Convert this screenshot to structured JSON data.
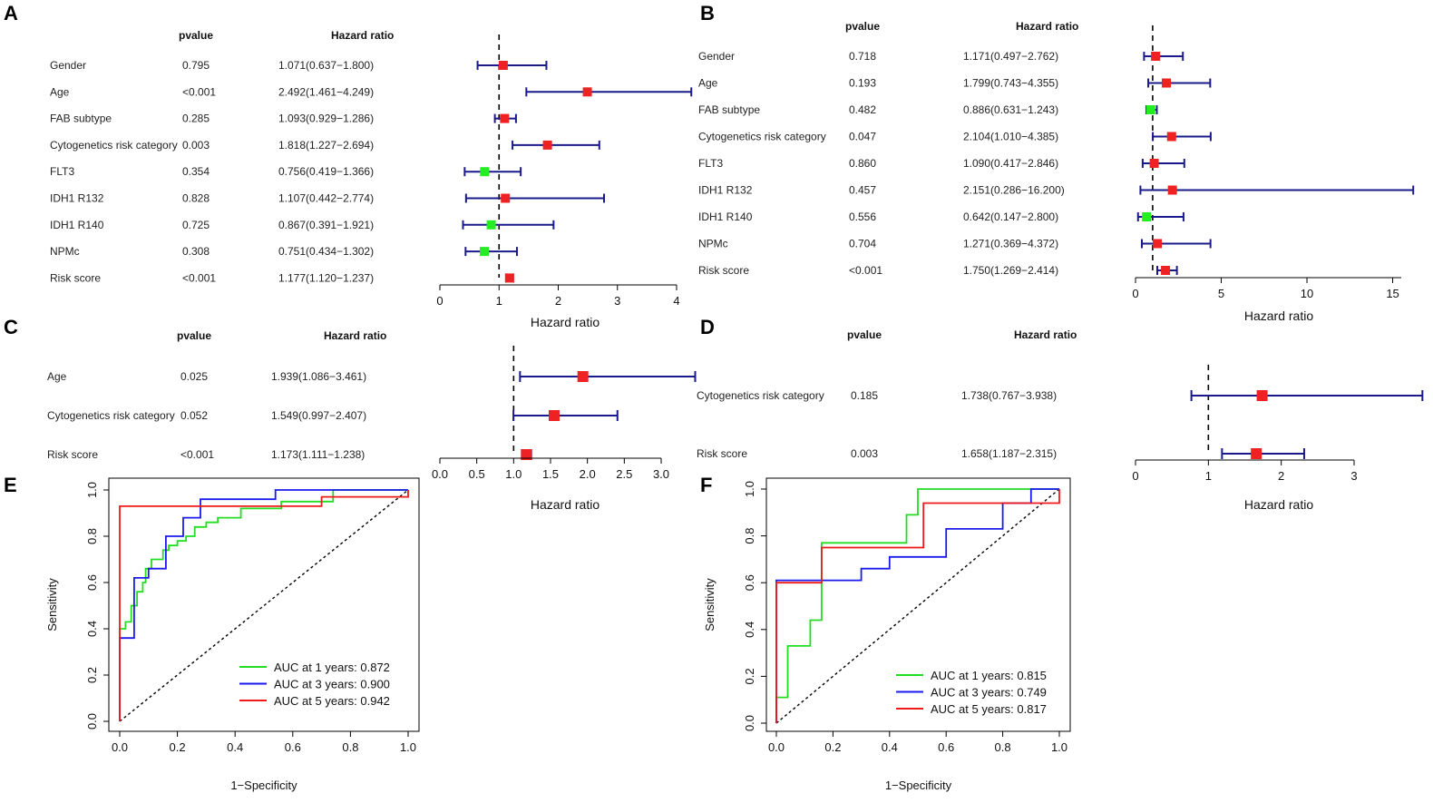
{
  "chart_data": [
    {
      "type": "forest",
      "panel": "A",
      "col_pvalue": "pvalue",
      "col_hr": "Hazard ratio",
      "rows": [
        {
          "name": "Gender",
          "p": "0.795",
          "hr_text": "1.071(0.637−1.800)",
          "hr": 1.071,
          "lo": 0.637,
          "hi": 1.8
        },
        {
          "name": "Age",
          "p": "<0.001",
          "hr_text": "2.492(1.461−4.249)",
          "hr": 2.492,
          "lo": 1.461,
          "hi": 4.249
        },
        {
          "name": "FAB subtype",
          "p": "0.285",
          "hr_text": "1.093(0.929−1.286)",
          "hr": 1.093,
          "lo": 0.929,
          "hi": 1.286
        },
        {
          "name": "Cytogenetics risk category",
          "p": "0.003",
          "hr_text": "1.818(1.227−2.694)",
          "hr": 1.818,
          "lo": 1.227,
          "hi": 2.694
        },
        {
          "name": "FLT3",
          "p": "0.354",
          "hr_text": "0.756(0.419−1.366)",
          "hr": 0.756,
          "lo": 0.419,
          "hi": 1.366
        },
        {
          "name": "IDH1 R132",
          "p": "0.828",
          "hr_text": "1.107(0.442−2.774)",
          "hr": 1.107,
          "lo": 0.442,
          "hi": 2.774
        },
        {
          "name": "IDH1 R140",
          "p": "0.725",
          "hr_text": "0.867(0.391−1.921)",
          "hr": 0.867,
          "lo": 0.391,
          "hi": 1.921
        },
        {
          "name": "NPMc",
          "p": "0.308",
          "hr_text": "0.751(0.434−1.302)",
          "hr": 0.751,
          "lo": 0.434,
          "hi": 1.302
        },
        {
          "name": "Risk score",
          "p": "<0.001",
          "hr_text": "1.177(1.120−1.237)",
          "hr": 1.177,
          "lo": 1.12,
          "hi": 1.237
        }
      ],
      "xlim": [
        0,
        4
      ],
      "ticks": [
        "0",
        "1",
        "2",
        "3",
        "4"
      ],
      "xlabel": "Hazard ratio"
    },
    {
      "type": "forest",
      "panel": "B",
      "col_pvalue": "pvalue",
      "col_hr": "Hazard ratio",
      "rows": [
        {
          "name": "Gender",
          "p": "0.718",
          "hr_text": "1.171(0.497−2.762)",
          "hr": 1.171,
          "lo": 0.497,
          "hi": 2.762
        },
        {
          "name": "Age",
          "p": "0.193",
          "hr_text": "1.799(0.743−4.355)",
          "hr": 1.799,
          "lo": 0.743,
          "hi": 4.355
        },
        {
          "name": "FAB subtype",
          "p": "0.482",
          "hr_text": "0.886(0.631−1.243)",
          "hr": 0.886,
          "lo": 0.631,
          "hi": 1.243
        },
        {
          "name": "Cytogenetics risk category",
          "p": "0.047",
          "hr_text": "2.104(1.010−4.385)",
          "hr": 2.104,
          "lo": 1.01,
          "hi": 4.385
        },
        {
          "name": "FLT3",
          "p": "0.860",
          "hr_text": "1.090(0.417−2.846)",
          "hr": 1.09,
          "lo": 0.417,
          "hi": 2.846
        },
        {
          "name": "IDH1 R132",
          "p": "0.457",
          "hr_text": "2.151(0.286−16.200)",
          "hr": 2.151,
          "lo": 0.286,
          "hi": 16.2
        },
        {
          "name": "IDH1 R140",
          "p": "0.556",
          "hr_text": "0.642(0.147−2.800)",
          "hr": 0.642,
          "lo": 0.147,
          "hi": 2.8
        },
        {
          "name": "NPMc",
          "p": "0.704",
          "hr_text": "1.271(0.369−4.372)",
          "hr": 1.271,
          "lo": 0.369,
          "hi": 4.372
        },
        {
          "name": "Risk score",
          "p": "<0.001",
          "hr_text": "1.750(1.269−2.414)",
          "hr": 1.75,
          "lo": 1.269,
          "hi": 2.414
        }
      ],
      "xlim": [
        0,
        15.5
      ],
      "ticks": [
        "0",
        "5",
        "10",
        "15"
      ],
      "xlabel": "Hazard ratio"
    },
    {
      "type": "forest",
      "panel": "C",
      "col_pvalue": "pvalue",
      "col_hr": "Hazard ratio",
      "rows": [
        {
          "name": "Age",
          "p": "0.025",
          "hr_text": "1.939(1.086−3.461)",
          "hr": 1.939,
          "lo": 1.086,
          "hi": 3.461
        },
        {
          "name": "Cytogenetics risk category",
          "p": "0.052",
          "hr_text": "1.549(0.997−2.407)",
          "hr": 1.549,
          "lo": 0.997,
          "hi": 2.407
        },
        {
          "name": "Risk score",
          "p": "<0.001",
          "hr_text": "1.173(1.111−1.238)",
          "hr": 1.173,
          "lo": 1.111,
          "hi": 1.238
        }
      ],
      "xlim": [
        0,
        3
      ],
      "ticks": [
        "0.0",
        "0.5",
        "1.0",
        "1.5",
        "2.0",
        "2.5",
        "3.0"
      ],
      "xlabel": "Hazard ratio"
    },
    {
      "type": "forest",
      "panel": "D",
      "col_pvalue": "pvalue",
      "col_hr": "Hazard ratio",
      "rows": [
        {
          "name": "Cytogenetics risk category",
          "p": "0.185",
          "hr_text": "1.738(0.767−3.938)",
          "hr": 1.738,
          "lo": 0.767,
          "hi": 3.938
        },
        {
          "name": "Risk score",
          "p": "0.003",
          "hr_text": "1.658(1.187−2.315)",
          "hr": 1.658,
          "lo": 1.187,
          "hi": 2.315
        }
      ],
      "xlim": [
        0,
        3
      ],
      "ticks": [
        "0",
        "1",
        "2",
        "3"
      ],
      "xlabel": "Hazard ratio"
    },
    {
      "type": "line",
      "panel": "E",
      "xlabel": "1−Specificity",
      "ylabel": "Sensitivity",
      "xlim": [
        0,
        1
      ],
      "ylim": [
        0,
        1
      ],
      "xticks": [
        "0.0",
        "0.2",
        "0.4",
        "0.6",
        "0.8",
        "1.0"
      ],
      "yticks": [
        "0.0",
        "0.2",
        "0.4",
        "0.6",
        "0.8",
        "1.0"
      ],
      "series": [
        {
          "name": "AUC at 1 years: 0.872",
          "color": "#22dd22",
          "points": [
            [
              0,
              0
            ],
            [
              0,
              0.4
            ],
            [
              0.02,
              0.4
            ],
            [
              0.02,
              0.43
            ],
            [
              0.04,
              0.43
            ],
            [
              0.04,
              0.5
            ],
            [
              0.06,
              0.5
            ],
            [
              0.06,
              0.56
            ],
            [
              0.08,
              0.56
            ],
            [
              0.08,
              0.6
            ],
            [
              0.09,
              0.6
            ],
            [
              0.09,
              0.66
            ],
            [
              0.11,
              0.66
            ],
            [
              0.11,
              0.7
            ],
            [
              0.15,
              0.7
            ],
            [
              0.15,
              0.74
            ],
            [
              0.17,
              0.74
            ],
            [
              0.17,
              0.76
            ],
            [
              0.2,
              0.76
            ],
            [
              0.2,
              0.78
            ],
            [
              0.23,
              0.78
            ],
            [
              0.23,
              0.8
            ],
            [
              0.26,
              0.8
            ],
            [
              0.26,
              0.84
            ],
            [
              0.3,
              0.84
            ],
            [
              0.3,
              0.86
            ],
            [
              0.34,
              0.86
            ],
            [
              0.34,
              0.88
            ],
            [
              0.42,
              0.88
            ],
            [
              0.42,
              0.92
            ],
            [
              0.56,
              0.92
            ],
            [
              0.56,
              0.95
            ],
            [
              0.74,
              0.95
            ],
            [
              0.74,
              1.0
            ],
            [
              1.0,
              1.0
            ]
          ]
        },
        {
          "name": "AUC at 3 years: 0.900",
          "color": "#1a1aee",
          "points": [
            [
              0,
              0
            ],
            [
              0,
              0.36
            ],
            [
              0.05,
              0.36
            ],
            [
              0.05,
              0.62
            ],
            [
              0.1,
              0.62
            ],
            [
              0.1,
              0.66
            ],
            [
              0.16,
              0.66
            ],
            [
              0.16,
              0.8
            ],
            [
              0.22,
              0.8
            ],
            [
              0.22,
              0.88
            ],
            [
              0.28,
              0.88
            ],
            [
              0.28,
              0.96
            ],
            [
              0.54,
              0.96
            ],
            [
              0.54,
              1.0
            ],
            [
              1.0,
              1.0
            ]
          ]
        },
        {
          "name": "AUC at 5 years: 0.942",
          "color": "#ee1a1a",
          "points": [
            [
              0,
              0
            ],
            [
              0,
              0.93
            ],
            [
              0.7,
              0.93
            ],
            [
              0.7,
              0.97
            ],
            [
              1.0,
              0.97
            ],
            [
              1.0,
              1.0
            ]
          ]
        }
      ]
    },
    {
      "type": "line",
      "panel": "F",
      "xlabel": "1−Specificity",
      "ylabel": "Sensitivity",
      "xlim": [
        0,
        1
      ],
      "ylim": [
        0,
        1
      ],
      "xticks": [
        "0.0",
        "0.2",
        "0.4",
        "0.6",
        "0.8",
        "1.0"
      ],
      "yticks": [
        "0.0",
        "0.2",
        "0.4",
        "0.6",
        "0.8",
        "1.0"
      ],
      "series": [
        {
          "name": "AUC at 1 years: 0.815",
          "color": "#22dd22",
          "points": [
            [
              0,
              0
            ],
            [
              0,
              0.11
            ],
            [
              0.04,
              0.11
            ],
            [
              0.04,
              0.33
            ],
            [
              0.12,
              0.33
            ],
            [
              0.12,
              0.44
            ],
            [
              0.16,
              0.44
            ],
            [
              0.16,
              0.77
            ],
            [
              0.46,
              0.77
            ],
            [
              0.46,
              0.89
            ],
            [
              0.5,
              0.89
            ],
            [
              0.5,
              1.0
            ],
            [
              1.0,
              1.0
            ]
          ]
        },
        {
          "name": "AUC at 3 years: 0.749",
          "color": "#1a1aee",
          "points": [
            [
              0,
              0
            ],
            [
              0,
              0.61
            ],
            [
              0.3,
              0.61
            ],
            [
              0.3,
              0.66
            ],
            [
              0.4,
              0.66
            ],
            [
              0.4,
              0.71
            ],
            [
              0.6,
              0.71
            ],
            [
              0.6,
              0.83
            ],
            [
              0.8,
              0.83
            ],
            [
              0.8,
              0.94
            ],
            [
              0.9,
              0.94
            ],
            [
              0.9,
              1.0
            ],
            [
              1.0,
              1.0
            ]
          ]
        },
        {
          "name": "AUC at 5 years: 0.817",
          "color": "#ee1a1a",
          "points": [
            [
              0,
              0
            ],
            [
              0,
              0.6
            ],
            [
              0.16,
              0.6
            ],
            [
              0.16,
              0.75
            ],
            [
              0.52,
              0.75
            ],
            [
              0.52,
              0.94
            ],
            [
              1.0,
              0.94
            ],
            [
              1.0,
              1.0
            ]
          ]
        }
      ]
    }
  ],
  "colors": {
    "risk": "#ee2222",
    "protective": "#22ee22",
    "ci_line": "#1a1a8c",
    "text": "#222222"
  }
}
